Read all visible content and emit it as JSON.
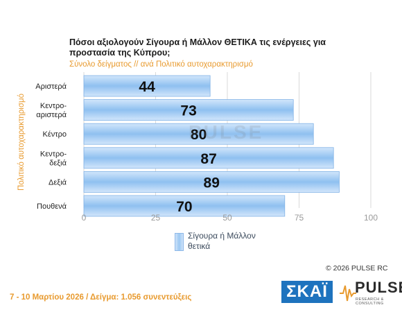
{
  "chart_data": {
    "type": "bar",
    "orientation": "horizontal",
    "title": "Πόσοι αξιολογούν Σίγουρα ή Μάλλον ΘΕΤΙΚΑ τις ενέργειες για προστασία της Κύπρου;",
    "subtitle": "Σύνολο δείγματος // ανά Πολιτικό αυτοχαρακτηρισμό",
    "ylabel": "Πολιτικό αυτοχαρακτηρισμό",
    "categories": [
      "Αριστερά",
      "Κεντρο-αριστερά",
      "Κέντρο",
      "Κεντρο-δεξιά",
      "Δεξιά",
      "Πουθενά"
    ],
    "category_lines": [
      [
        "Αριστερά"
      ],
      [
        "Κεντρο-",
        "αριστερά"
      ],
      [
        "Κέντρο"
      ],
      [
        "Κεντρο-",
        "δεξιά"
      ],
      [
        "Δεξιά"
      ],
      [
        "Πουθενά"
      ]
    ],
    "series": [
      {
        "name": "Σίγουρα ή Μάλλον θετικά",
        "values": [
          44,
          73,
          80,
          87,
          89,
          70
        ]
      }
    ],
    "xlim": [
      0,
      100
    ],
    "xticks": [
      0,
      25,
      50,
      75,
      100
    ],
    "grid": true,
    "legend_position": "bottom",
    "colors": {
      "bar_light": "#d2e6fb",
      "bar_dark": "#8fc0f0",
      "bar_border": "#7fb1e6",
      "grid": "#d9d9d9"
    }
  },
  "legend": {
    "label": "Σίγουρα ή Μάλλον θετικά"
  },
  "watermark": "PULSE",
  "copyright": "©  2026  PULSE RC",
  "footer": "7 - 10  Μαρτίου 2026  /  Δείγμα:  1.056 συνεντεύξεις",
  "logos": {
    "skai": "ΣΚΑΪ",
    "pulse": "PULSE",
    "pulse_sub": "RESEARCH & CONSULTING"
  }
}
